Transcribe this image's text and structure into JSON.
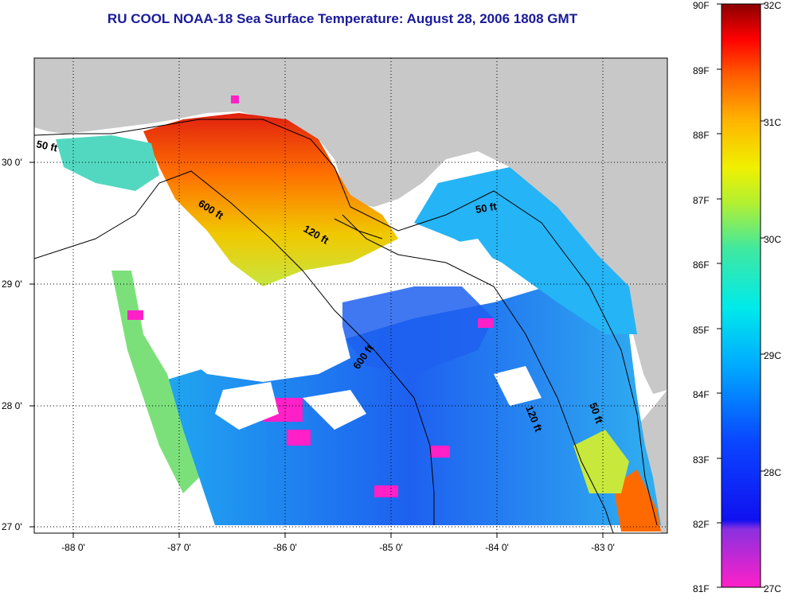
{
  "title": "RU COOL  NOAA-18  Sea Surface Temperature:  August 28, 2006 1808 GMT",
  "colors": {
    "land": "#c8c8c8",
    "nodata": "#ffffff",
    "title": "#1a1a9a"
  },
  "axes": {
    "lat_labels": [
      "30 0'",
      "29 0'",
      "28 0'",
      "27 0'"
    ],
    "lon_labels": [
      "-88 0'",
      "-87 0'",
      "-86 0'",
      "-85 0'",
      "-84 0'",
      "-83 0'"
    ]
  },
  "contours": {
    "labels": [
      "50 ft",
      "600 ft",
      "120 ft",
      "50 ft",
      "600 ft",
      "120 ft",
      "50 ft"
    ]
  },
  "colorbar": {
    "fahrenheit_labels": [
      "90F",
      "89F",
      "88F",
      "87F",
      "86F",
      "85F",
      "84F",
      "83F",
      "82F",
      "81F"
    ],
    "celsius_labels": [
      "32C",
      "31C",
      "30C",
      "29C",
      "28C",
      "27C"
    ]
  }
}
